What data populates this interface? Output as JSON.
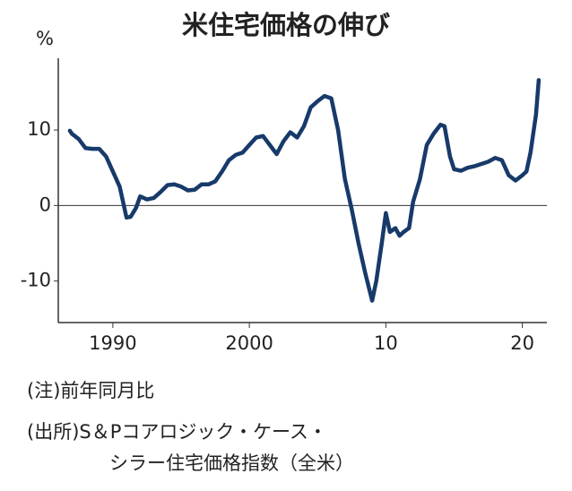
{
  "chart_data": {
    "type": "line",
    "title": "米住宅価格の伸び",
    "y_unit": "%",
    "notes": [
      "(注)前年同月比",
      "(出所)S＆Pコアロジック・ケース・",
      "シラー住宅価格指数（全米）"
    ],
    "x": [
      1986.85,
      1987.0,
      1987.5,
      1988.0,
      1988.5,
      1989.0,
      1989.5,
      1990.0,
      1990.5,
      1991.0,
      1991.3,
      1991.7,
      1992.0,
      1992.5,
      1993.0,
      1993.5,
      1994.0,
      1994.5,
      1995.0,
      1995.5,
      1996.0,
      1996.5,
      1997.0,
      1997.5,
      1998.0,
      1998.5,
      1999.0,
      1999.5,
      2000.0,
      2000.5,
      2001.0,
      2001.5,
      2002.0,
      2002.5,
      2003.0,
      2003.5,
      2004.0,
      2004.5,
      2005.0,
      2005.5,
      2006.0,
      2006.5,
      2007.0,
      2007.5,
      2008.0,
      2008.5,
      2009.0,
      2009.3,
      2009.7,
      2010.0,
      2010.3,
      2010.7,
      2011.0,
      2011.3,
      2011.7,
      2012.0,
      2012.5,
      2013.0,
      2013.5,
      2014.0,
      2014.3,
      2014.7,
      2015.0,
      2015.5,
      2016.0,
      2016.5,
      2017.0,
      2017.5,
      2018.0,
      2018.5,
      2019.0,
      2019.5,
      2020.0,
      2020.3,
      2020.6,
      2021.0,
      2021.2
    ],
    "values": [
      9.9,
      9.5,
      8.8,
      7.6,
      7.5,
      7.5,
      6.5,
      4.5,
      2.5,
      -1.6,
      -1.5,
      -0.3,
      1.2,
      0.8,
      1.0,
      1.8,
      2.7,
      2.8,
      2.5,
      2.0,
      2.1,
      2.8,
      2.8,
      3.2,
      4.5,
      6.0,
      6.7,
      7.0,
      8.0,
      9.0,
      9.2,
      8.0,
      6.8,
      8.5,
      9.7,
      9.0,
      10.5,
      13.0,
      13.8,
      14.5,
      14.2,
      10.0,
      3.5,
      -0.5,
      -5.0,
      -9.0,
      -12.6,
      -10.0,
      -5.0,
      -1.0,
      -3.5,
      -3.0,
      -4.0,
      -3.5,
      -3.0,
      0.5,
      3.5,
      8.0,
      9.5,
      10.7,
      10.5,
      6.5,
      4.8,
      4.6,
      5.0,
      5.2,
      5.5,
      5.8,
      6.3,
      6.0,
      4.0,
      3.3,
      4.0,
      4.5,
      7.0,
      12.0,
      16.6
    ],
    "color": "#173a6a",
    "xlim": [
      1986,
      2021.8
    ],
    "xticks": [
      1990,
      2000,
      {
        "value": 2010,
        "label": "10"
      },
      {
        "value": 2020,
        "label": "20"
      }
    ],
    "ylim": [
      -15.5,
      19.5
    ],
    "yticks": [
      10,
      0,
      -10
    ]
  }
}
